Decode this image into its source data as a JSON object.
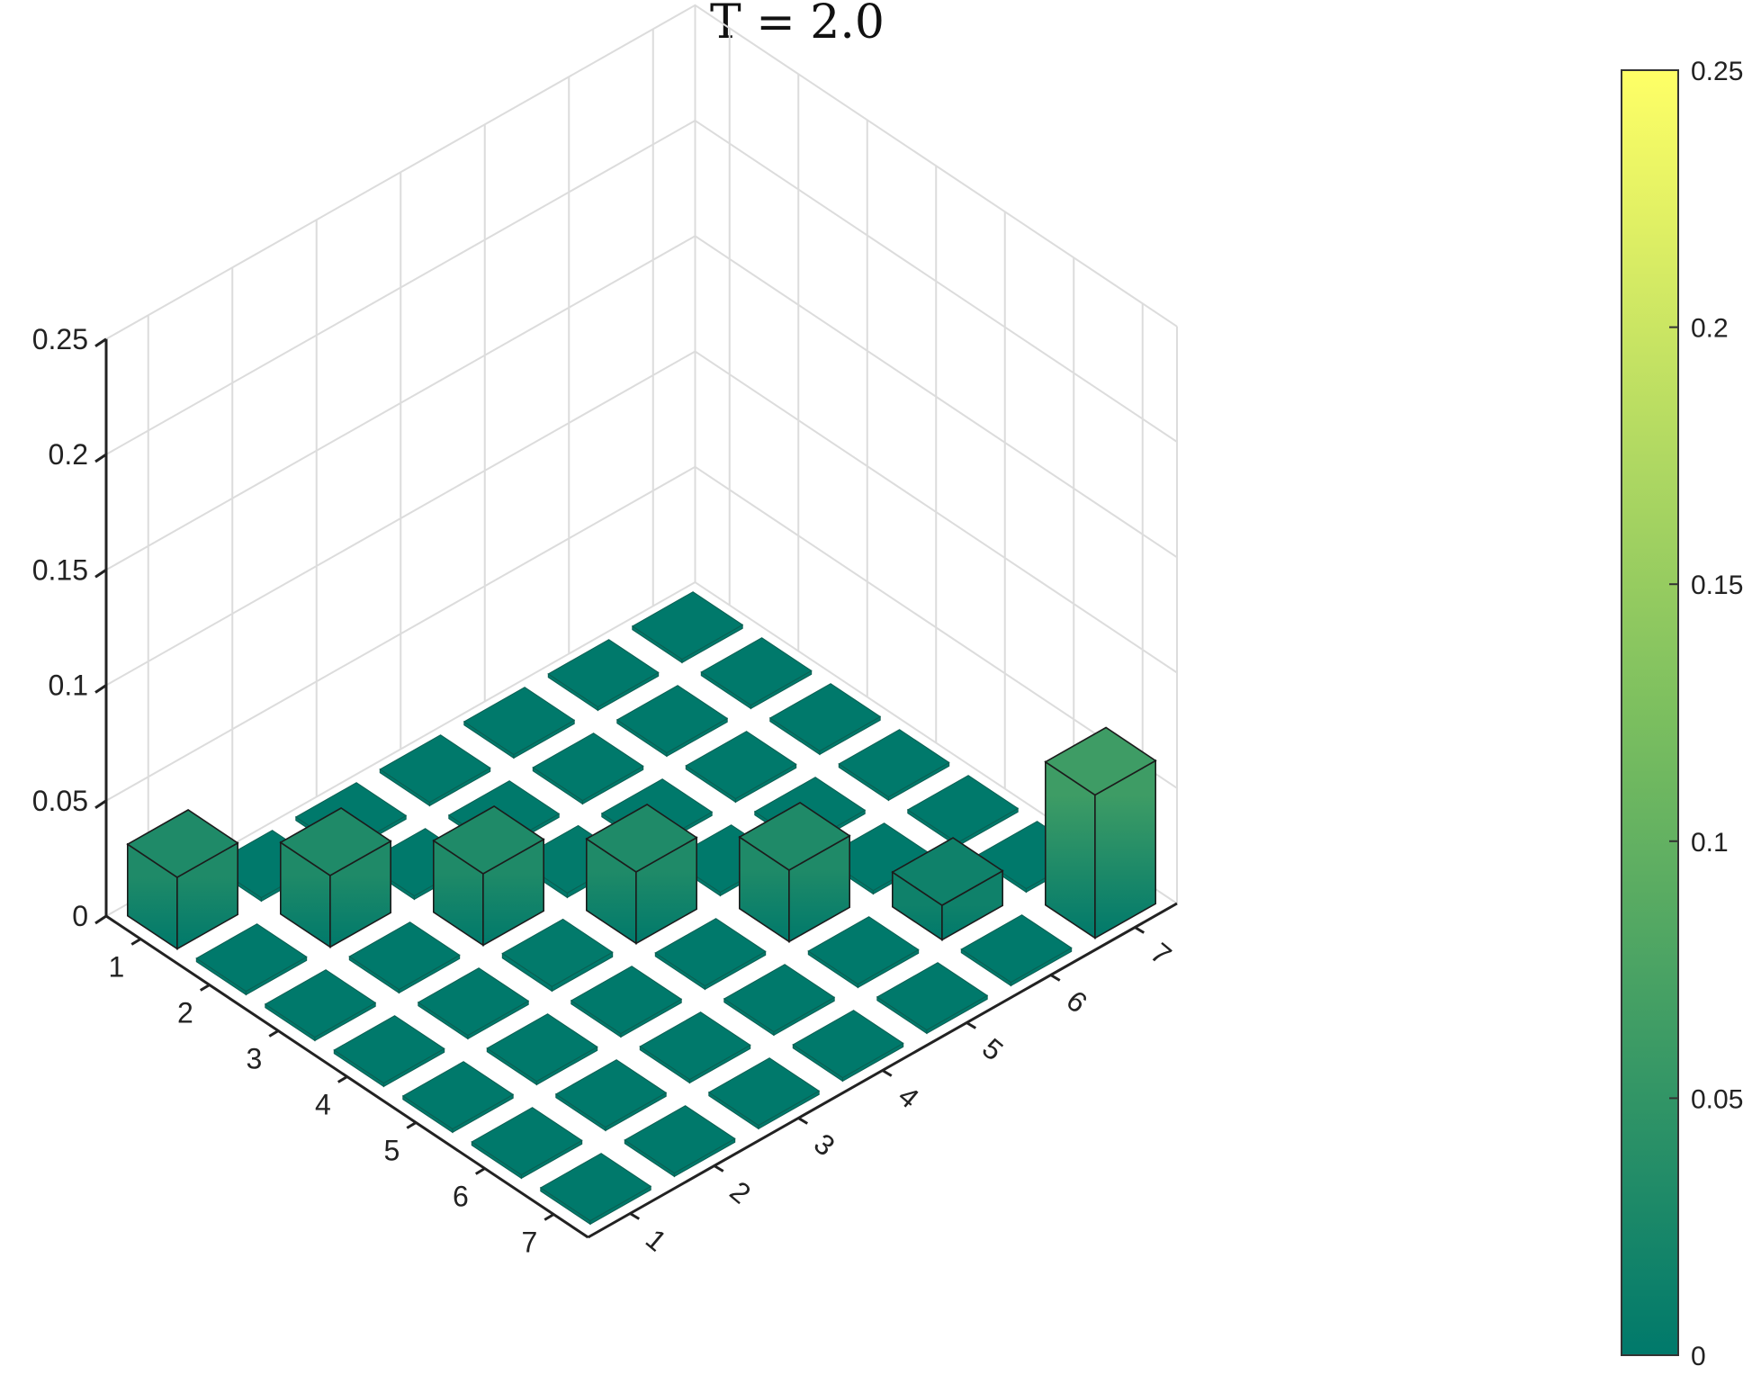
{
  "chart_data": {
    "type": "bar3",
    "title": "T = 2.0",
    "xlabel": "",
    "ylabel": "",
    "zlabel": "",
    "rows": [
      1,
      2,
      3,
      4,
      5,
      6,
      7
    ],
    "cols": [
      1,
      2,
      3,
      4,
      5,
      6,
      7
    ],
    "z_ticks": [
      "0",
      "0.05",
      "0.1",
      "0.15",
      "0.2",
      "0.25"
    ],
    "z_tick_values": [
      0,
      0.05,
      0.1,
      0.15,
      0.2,
      0.25
    ],
    "zlim": [
      0,
      0.25
    ],
    "grid": true,
    "values": [
      [
        0.031,
        0.0,
        0.0,
        0.0,
        0.0,
        0.0,
        0.0
      ],
      [
        0.0,
        0.031,
        0.0,
        0.0,
        0.0,
        0.0,
        0.0
      ],
      [
        0.0,
        0.0,
        0.031,
        0.002,
        0.0,
        0.0,
        0.0
      ],
      [
        0.0,
        0.0,
        0.002,
        0.031,
        0.0,
        0.0,
        0.0
      ],
      [
        0.0,
        0.0,
        0.0,
        0.0,
        0.031,
        0.0,
        0.0
      ],
      [
        0.0,
        0.0,
        0.0,
        0.0,
        0.0,
        0.015,
        0.0
      ],
      [
        0.0,
        0.0,
        0.0,
        0.0,
        0.0,
        0.0,
        0.062
      ]
    ],
    "colorbar": {
      "ticks": [
        "0",
        "0.05",
        "0.1",
        "0.15",
        "0.2",
        "0.25"
      ],
      "tick_values": [
        0,
        0.05,
        0.1,
        0.15,
        0.2,
        0.25
      ],
      "range": [
        0,
        0.25
      ],
      "colors": [
        "#00796b",
        "#ffff66"
      ]
    }
  }
}
